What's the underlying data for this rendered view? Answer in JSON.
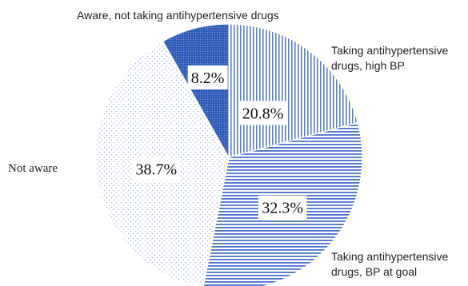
{
  "chart_data": {
    "type": "pie",
    "categories": [
      "Taking antihypertensive drugs, high BP",
      "Taking antihypertensive drugs, BP at goal",
      "Not aware",
      "Aware, not taking antihypertensive drugs"
    ],
    "values": [
      20.8,
      32.3,
      38.7,
      8.2
    ],
    "value_labels": [
      "20.8%",
      "32.3%",
      "38.7%",
      "8.2%"
    ],
    "label_texts": [
      "Taking antihypertensive\ndrugs, high BP",
      "Taking antihypertensive\ndrugs, BP at goal",
      "Not aware",
      "Aware, not taking antihypertensive drugs"
    ],
    "start": "top",
    "direction": "clockwise",
    "colors": [
      "#5b7fd0",
      "#4a72c8",
      "#c9d4ea",
      "#2f5db8"
    ],
    "patterns": [
      "vertical-lines",
      "horizontal-lines",
      "dots",
      "dense-dots"
    ]
  }
}
